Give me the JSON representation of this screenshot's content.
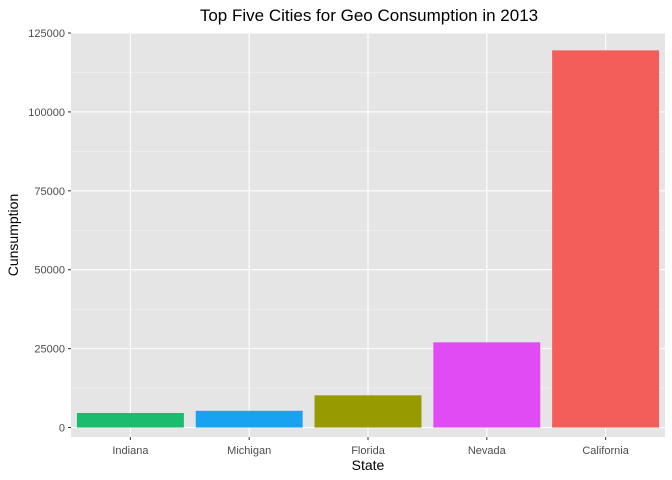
{
  "chart_data": {
    "type": "bar",
    "title": "Top Five Cities for Geo Consumption in 2013",
    "xlabel": "State",
    "ylabel": "Cunsumption",
    "categories": [
      "Indiana",
      "Michigan",
      "Florida",
      "Nevada",
      "California"
    ],
    "values": [
      4600,
      5300,
      10200,
      27000,
      119500
    ],
    "colors": [
      "#1ABC6E",
      "#17A2F2",
      "#979A00",
      "#E14BF3",
      "#F35E5A"
    ],
    "ylim": [
      -3000,
      125000
    ],
    "yticks": [
      0,
      25000,
      50000,
      75000,
      100000,
      125000
    ],
    "ytick_labels": [
      "0",
      "25000",
      "50000",
      "75000",
      "100000",
      "125000"
    ],
    "grid": true,
    "legend": "none",
    "panel_background": "#E5E5E5"
  }
}
